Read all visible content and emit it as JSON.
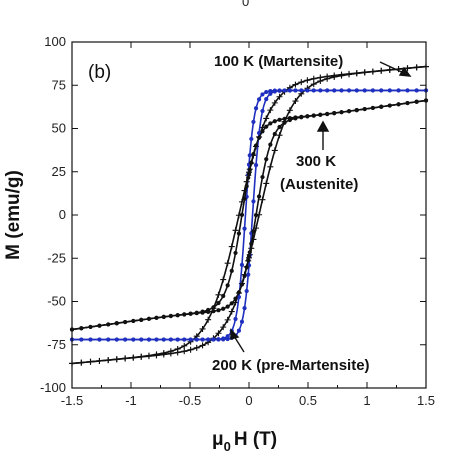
{
  "chart_data": {
    "type": "line",
    "panel_label": "(b)",
    "top_fragment": "0",
    "xlabel_main": "μ",
    "xlabel_sub": "0",
    "xlabel_rest": "H (T)",
    "ylabel": "M (emu/g)",
    "xlim": [
      -1.5,
      1.5
    ],
    "ylim": [
      -100,
      100
    ],
    "x_ticks": [
      -1.5,
      -1,
      -0.5,
      0,
      0.5,
      1,
      1.5
    ],
    "x_tick_labels": [
      "-1.5",
      "-1",
      "-0.5",
      "0",
      "0.5",
      "1",
      "1.5"
    ],
    "y_ticks": [
      -100,
      -75,
      -50,
      -25,
      0,
      25,
      50,
      75,
      100
    ],
    "y_tick_labels": [
      "-100",
      "-75",
      "-50",
      "-25",
      "0",
      "25",
      "50",
      "75",
      "100"
    ],
    "annotations": [
      {
        "text": "100 K (Martensite)"
      },
      {
        "text": "300 K"
      },
      {
        "text": "(Austenite)"
      },
      {
        "text": "200 K (pre-Martensite)"
      }
    ],
    "series": [
      {
        "ms": 79,
        "hc": 0.085,
        "w": 0.26,
        "tail": 0.8,
        "tailw": 0.9,
        "color": "#111111",
        "marker": "plus"
      },
      {
        "ms": 72,
        "hc": 0.03,
        "w": 0.07,
        "tail": 0.0,
        "tailw": 1.0,
        "color": "#1f2fbf",
        "marker": "dot"
      },
      {
        "ms": 56,
        "hc": 0.06,
        "w": 0.13,
        "tail": 1.2,
        "tailw": 1.0,
        "color": "#111111",
        "marker": "dot"
      }
    ],
    "grid": false
  }
}
